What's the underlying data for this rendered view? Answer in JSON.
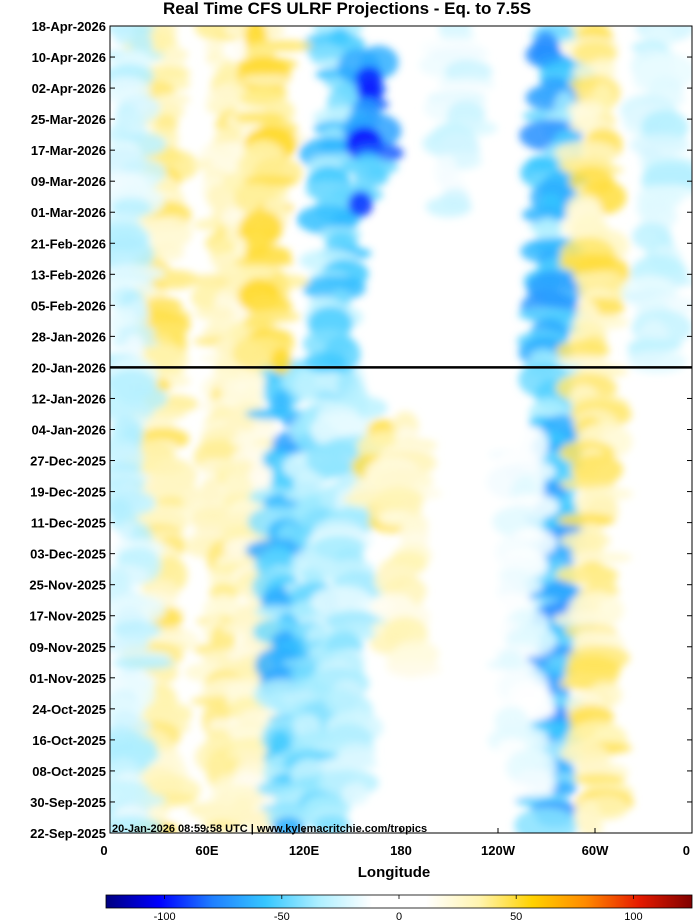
{
  "chart_data": {
    "type": "heatmap",
    "title": "Real Time CFS ULRF Projections - Eq. to 7.5S",
    "xlabel": "Longitude",
    "ylabel": "",
    "x_ticks": [
      "0",
      "60E",
      "120E",
      "180",
      "120W",
      "60W",
      "0"
    ],
    "x_tick_degrees_east": [
      0,
      60,
      120,
      180,
      240,
      300,
      360
    ],
    "xlim_degrees_east": [
      0,
      360
    ],
    "y_ticks": [
      "18-Apr-2026",
      "10-Apr-2026",
      "02-Apr-2026",
      "25-Mar-2026",
      "17-Mar-2026",
      "09-Mar-2026",
      "01-Mar-2026",
      "21-Feb-2026",
      "13-Feb-2026",
      "05-Feb-2026",
      "28-Jan-2026",
      "20-Jan-2026",
      "12-Jan-2026",
      "04-Jan-2026",
      "27-Dec-2025",
      "19-Dec-2025",
      "11-Dec-2025",
      "03-Dec-2025",
      "25-Nov-2025",
      "17-Nov-2025",
      "09-Nov-2025",
      "01-Nov-2025",
      "24-Oct-2025",
      "16-Oct-2025",
      "08-Oct-2025",
      "30-Sep-2025",
      "22-Sep-2025"
    ],
    "ylim": [
      "22-Sep-2025",
      "18-Apr-2026"
    ],
    "reference_line_date": "20-Jan-2026",
    "colorbar": {
      "ticks": [
        -100,
        -50,
        0,
        50,
        100
      ],
      "range": [
        -125,
        125
      ],
      "colors": [
        "#000080",
        "#0000ff",
        "#1f7fff",
        "#36c7ff",
        "#aeefff",
        "#ffffff",
        "#ffffff",
        "#fff4b0",
        "#ffd200",
        "#ff8a00",
        "#e61b00",
        "#800000"
      ]
    },
    "features": [
      {
        "lon": 32,
        "d0": "22-Sep-2025",
        "d1": "18-Apr-2026",
        "v": 35
      },
      {
        "lon": 70,
        "d0": "22-Sep-2025",
        "d1": "18-Apr-2026",
        "v": 30
      },
      {
        "lon": 88,
        "d0": "22-Sep-2025",
        "d1": "18-Apr-2026",
        "v": 25
      },
      {
        "lon": 110,
        "d0": "22-Sep-2025",
        "d1": "20-Jan-2026",
        "v": -50
      },
      {
        "lon": 130,
        "d0": "22-Sep-2025",
        "d1": "20-Jan-2026",
        "v": -35
      },
      {
        "lon": 148,
        "d0": "01-Oct-2025",
        "d1": "20-Jan-2026",
        "v": -30
      },
      {
        "lon": 168,
        "d0": "10-Dec-2025",
        "d1": "05-Jan-2026",
        "v": 35
      },
      {
        "lon": 182,
        "d0": "01-Nov-2025",
        "d1": "05-Jan-2026",
        "v": 25
      },
      {
        "lon": 275,
        "d0": "22-Sep-2025",
        "d1": "18-Apr-2026",
        "v": -55
      },
      {
        "lon": 300,
        "d0": "22-Sep-2025",
        "d1": "18-Apr-2026",
        "v": 35
      },
      {
        "lon": 255,
        "d0": "01-Oct-2025",
        "d1": "01-Jan-2026",
        "v": -15
      },
      {
        "lon": 140,
        "d0": "20-Jan-2026",
        "d1": "18-Apr-2026",
        "v": -45
      },
      {
        "lon": 160,
        "d0": "01-Mar-2026",
        "d1": "10-Apr-2026",
        "v": -80
      },
      {
        "lon": 98,
        "d0": "20-Jan-2026",
        "d1": "18-Apr-2026",
        "v": 40
      },
      {
        "lon": 13,
        "d0": "22-Sep-2025",
        "d1": "18-Apr-2026",
        "v": -25
      },
      {
        "lon": 340,
        "d0": "20-Jan-2026",
        "d1": "18-Apr-2026",
        "v": -25
      },
      {
        "lon": 215,
        "d0": "01-Mar-2026",
        "d1": "18-Apr-2026",
        "v": -20
      }
    ]
  },
  "footer_text": "20-Jan-2026 08:59:58 UTC | www.kylemacritchie.com/tropics"
}
